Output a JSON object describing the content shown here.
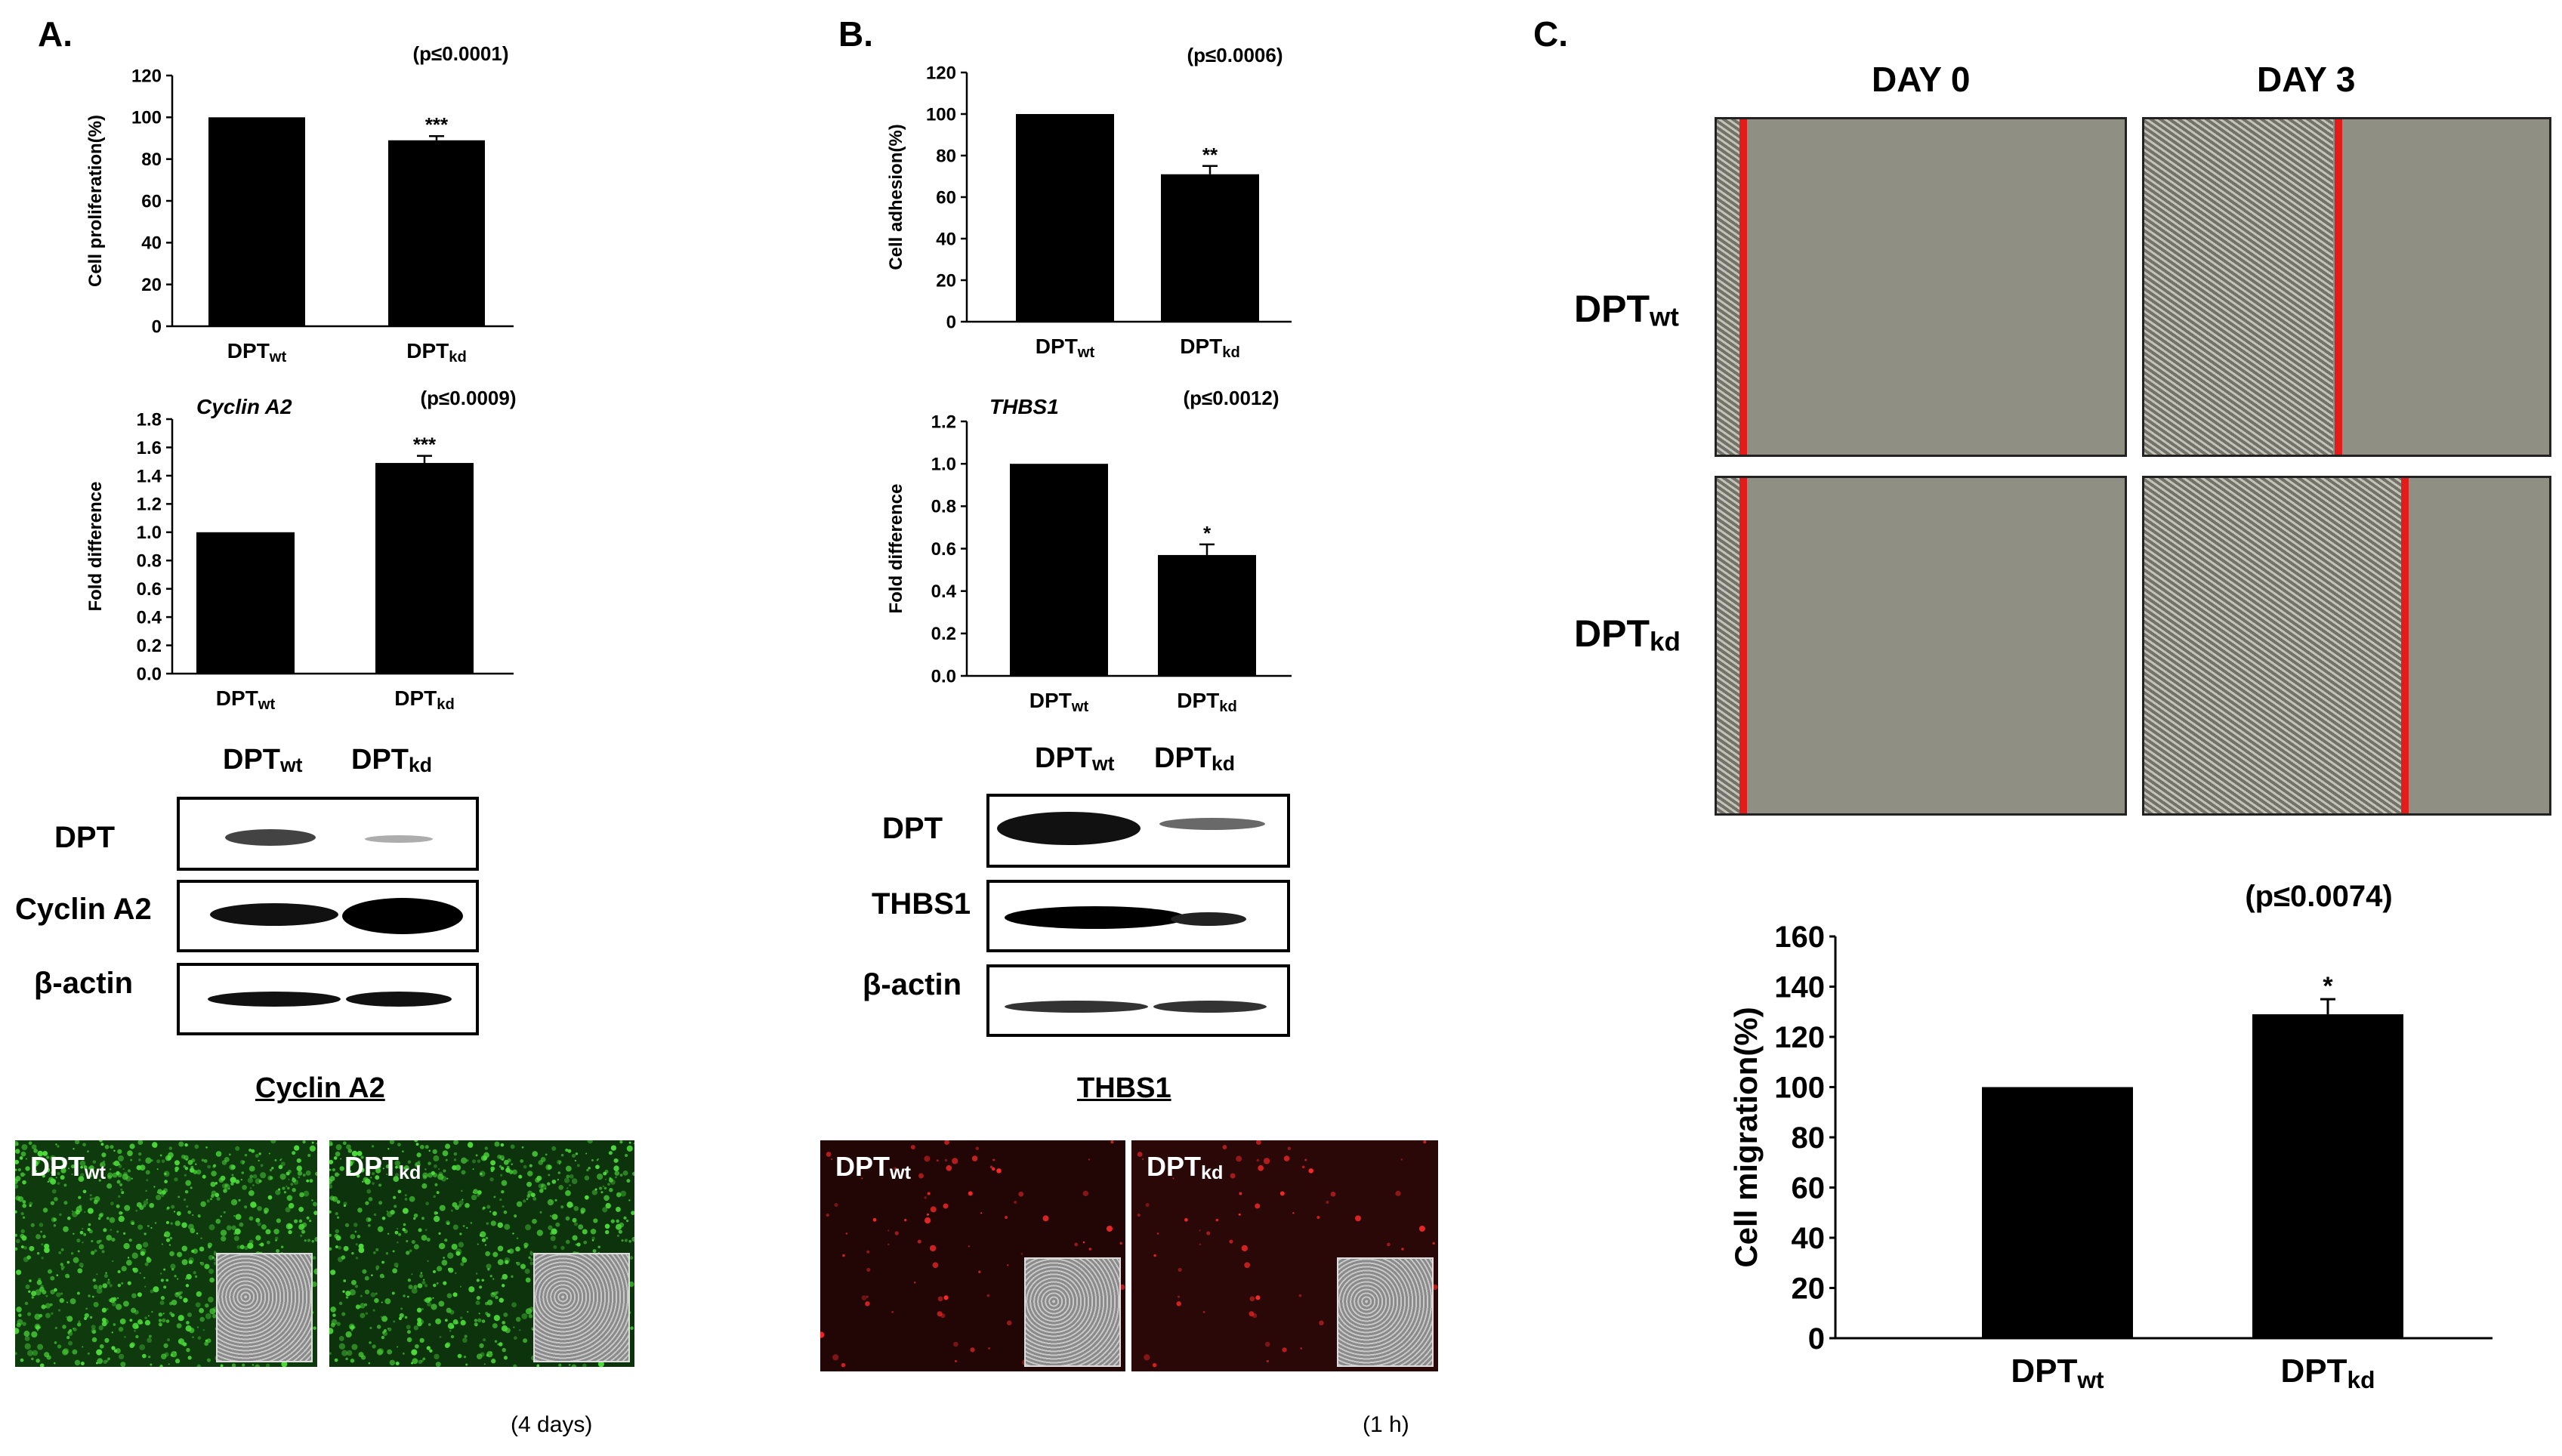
{
  "panels": {
    "A": {
      "letter": "A.",
      "prolif_chart": {
        "type": "bar",
        "ylabel": "Cell proliferation(%)",
        "pvalue": "(p≤0.0001)",
        "ylim": [
          0,
          120
        ],
        "yticks": [
          "0",
          "20",
          "40",
          "60",
          "80",
          "100",
          "120"
        ],
        "categories": [
          {
            "main": "DPT",
            "sub": "wt"
          },
          {
            "main": "DPT",
            "sub": "kd"
          }
        ],
        "values": [
          100,
          89
        ],
        "errors": [
          0,
          2
        ],
        "stars": [
          "",
          "***"
        ]
      },
      "cyclin_chart": {
        "type": "bar",
        "gene": "Cyclin A2",
        "ylabel": "Fold difference",
        "pvalue": "(p≤0.0009)",
        "ylim": [
          0,
          1.8
        ],
        "yticks": [
          "0.0",
          "0.2",
          "0.4",
          "0.6",
          "0.8",
          "1.0",
          "1.2",
          "1.4",
          "1.6",
          "1.8"
        ],
        "categories": [
          {
            "main": "DPT",
            "sub": "wt"
          },
          {
            "main": "DPT",
            "sub": "kd"
          }
        ],
        "values": [
          1.0,
          1.49
        ],
        "errors": [
          0,
          0.05
        ],
        "stars": [
          "",
          "***"
        ]
      },
      "blot": {
        "col1": {
          "main": "DPT",
          "sub": "wt"
        },
        "col2": {
          "main": "DPT",
          "sub": "kd"
        },
        "rows": [
          "DPT",
          "Cyclin A2",
          "β-actin"
        ]
      },
      "fluor": {
        "title": "Cyclin A2",
        "img1": {
          "main": "DPT",
          "sub": "wt"
        },
        "img2": {
          "main": "DPT",
          "sub": "kd"
        },
        "duration": "(4 days)",
        "color": "#1e8a1e"
      }
    },
    "B": {
      "letter": "B.",
      "adhesion_chart": {
        "type": "bar",
        "ylabel": "Cell adhesion(%)",
        "pvalue": "(p≤0.0006)",
        "ylim": [
          0,
          120
        ],
        "yticks": [
          "0",
          "20",
          "40",
          "60",
          "80",
          "100",
          "120"
        ],
        "categories": [
          {
            "main": "DPT",
            "sub": "wt"
          },
          {
            "main": "DPT",
            "sub": "kd"
          }
        ],
        "values": [
          100,
          71
        ],
        "errors": [
          0,
          4
        ],
        "stars": [
          "",
          "**"
        ]
      },
      "thbs1_chart": {
        "type": "bar",
        "gene": "THBS1",
        "ylabel": "Fold difference",
        "pvalue": "(p≤0.0012)",
        "ylim": [
          0,
          1.2
        ],
        "yticks": [
          "0.0",
          "0.2",
          "0.4",
          "0.6",
          "0.8",
          "1.0",
          "1.2"
        ],
        "categories": [
          {
            "main": "DPT",
            "sub": "wt"
          },
          {
            "main": "DPT",
            "sub": "kd"
          }
        ],
        "values": [
          1.0,
          0.57
        ],
        "errors": [
          0,
          0.05
        ],
        "stars": [
          "",
          "*"
        ]
      },
      "blot": {
        "col1": {
          "main": "DPT",
          "sub": "wt"
        },
        "col2": {
          "main": "DPT",
          "sub": "kd"
        },
        "rows": [
          "DPT",
          "THBS1",
          "β-actin"
        ]
      },
      "fluor": {
        "title": "THBS1",
        "img1": {
          "main": "DPT",
          "sub": "wt"
        },
        "img2": {
          "main": "DPT",
          "sub": "kd"
        },
        "duration": "(1 h)",
        "color": "#c41a1a"
      }
    },
    "C": {
      "letter": "C.",
      "day0": "DAY 0",
      "day3": "DAY 3",
      "row1": {
        "main": "DPT",
        "sub": "wt"
      },
      "row2": {
        "main": "DPT",
        "sub": "kd"
      },
      "migration_chart": {
        "type": "bar",
        "ylabel": "Cell migration(%)",
        "pvalue": "(p≤0.0074)",
        "ylim": [
          0,
          160
        ],
        "yticks": [
          "0",
          "20",
          "40",
          "60",
          "80",
          "100",
          "120",
          "140",
          "160"
        ],
        "categories": [
          {
            "main": "DPT",
            "sub": "wt"
          },
          {
            "main": "DPT",
            "sub": "kd"
          }
        ],
        "values": [
          100,
          129
        ],
        "errors": [
          0,
          6
        ],
        "stars": [
          "",
          "*"
        ]
      }
    }
  }
}
